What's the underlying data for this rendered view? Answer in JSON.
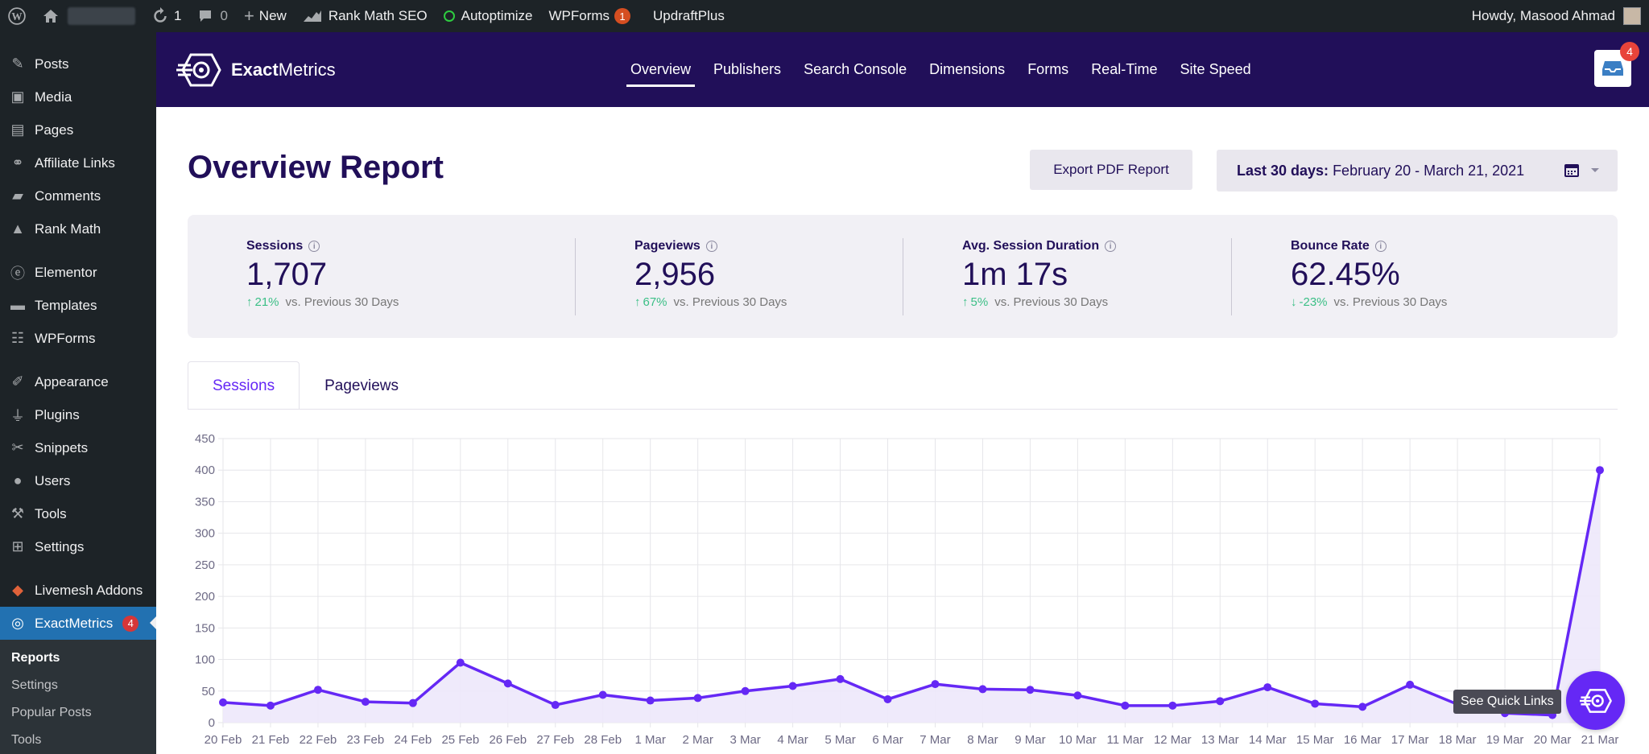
{
  "admin_bar": {
    "updates_count": "1",
    "comments_count": "0",
    "new_label": "New",
    "rankmath_label": "Rank Math SEO",
    "autoptimize_label": "Autoptimize",
    "wpforms_label": "WPForms",
    "wpforms_count": "1",
    "updraft_label": "UpdraftPlus",
    "greeting": "Howdy, Masood Ahmad"
  },
  "sidebar": {
    "items": [
      {
        "label": "Posts",
        "icon": "pin-icon"
      },
      {
        "label": "Media",
        "icon": "media-icon"
      },
      {
        "label": "Pages",
        "icon": "pages-icon"
      },
      {
        "label": "Affiliate Links",
        "icon": "link-icon"
      },
      {
        "label": "Comments",
        "icon": "comment-icon"
      },
      {
        "label": "Rank Math",
        "icon": "rankmath-icon"
      },
      {
        "label": "Elementor",
        "icon": "elementor-icon"
      },
      {
        "label": "Templates",
        "icon": "folder-icon"
      },
      {
        "label": "WPForms",
        "icon": "form-icon"
      },
      {
        "label": "Appearance",
        "icon": "brush-icon"
      },
      {
        "label": "Plugins",
        "icon": "plug-icon"
      },
      {
        "label": "Snippets",
        "icon": "scissors-icon"
      },
      {
        "label": "Users",
        "icon": "user-icon"
      },
      {
        "label": "Tools",
        "icon": "wrench-icon"
      },
      {
        "label": "Settings",
        "icon": "settings-icon"
      },
      {
        "label": "Livemesh Addons",
        "icon": "livemesh-icon"
      },
      {
        "label": "ExactMetrics",
        "icon": "exactmetrics-icon",
        "badge": "4"
      }
    ],
    "submenu": [
      "Reports",
      "Settings",
      "Popular Posts",
      "Tools"
    ]
  },
  "em_header": {
    "logo_bold": "Exact",
    "logo_rest": "Metrics",
    "tabs": [
      "Overview",
      "Publishers",
      "Search Console",
      "Dimensions",
      "Forms",
      "Real-Time",
      "Site Speed"
    ],
    "inbox_count": "4"
  },
  "report": {
    "title": "Overview Report",
    "export_label": "Export PDF Report",
    "date_label": "Last 30 days:",
    "date_range": "February 20 - March 21, 2021"
  },
  "kpis": [
    {
      "label": "Sessions",
      "value": "1,707",
      "change": "21%",
      "direction": "up",
      "compare": "vs. Previous 30 Days"
    },
    {
      "label": "Pageviews",
      "value": "2,956",
      "change": "67%",
      "direction": "up",
      "compare": "vs. Previous 30 Days"
    },
    {
      "label": "Avg. Session Duration",
      "value": "1m 17s",
      "change": "5%",
      "direction": "up",
      "compare": "vs. Previous 30 Days"
    },
    {
      "label": "Bounce Rate",
      "value": "62.45%",
      "change": "-23%",
      "direction": "down",
      "compare": "vs. Previous 30 Days"
    }
  ],
  "chart_tabs": [
    "Sessions",
    "Pageviews"
  ],
  "chart_data": {
    "type": "area",
    "categories": [
      "20 Feb",
      "21 Feb",
      "22 Feb",
      "23 Feb",
      "24 Feb",
      "25 Feb",
      "26 Feb",
      "27 Feb",
      "28 Feb",
      "1 Mar",
      "2 Mar",
      "3 Mar",
      "4 Mar",
      "5 Mar",
      "6 Mar",
      "7 Mar",
      "8 Mar",
      "9 Mar",
      "10 Mar",
      "11 Mar",
      "12 Mar",
      "13 Mar",
      "14 Mar",
      "15 Mar",
      "16 Mar",
      "17 Mar",
      "18 Mar",
      "19 Mar",
      "20 Mar",
      "21 Mar"
    ],
    "series": [
      {
        "values": [
          32,
          27,
          52,
          33,
          31,
          95,
          62,
          28,
          44,
          35,
          39,
          50,
          58,
          69,
          37,
          61,
          53,
          52,
          43,
          27,
          27,
          34,
          56,
          30,
          25,
          60,
          29,
          15,
          12,
          400
        ]
      }
    ],
    "ylim": [
      0,
      450
    ],
    "yticks": [
      0,
      50,
      100,
      150,
      200,
      250,
      300,
      350,
      400,
      450
    ],
    "grid": true,
    "line_color": "#6528f5",
    "fill_color": "#ede8fb"
  },
  "quick_links": {
    "tooltip": "See Quick Links"
  },
  "colors": {
    "brand_dark": "#210f59",
    "accent": "#6528f5",
    "positive": "#3bbf86",
    "wp_admin": "#1d2327",
    "wp_active": "#2271b1"
  }
}
